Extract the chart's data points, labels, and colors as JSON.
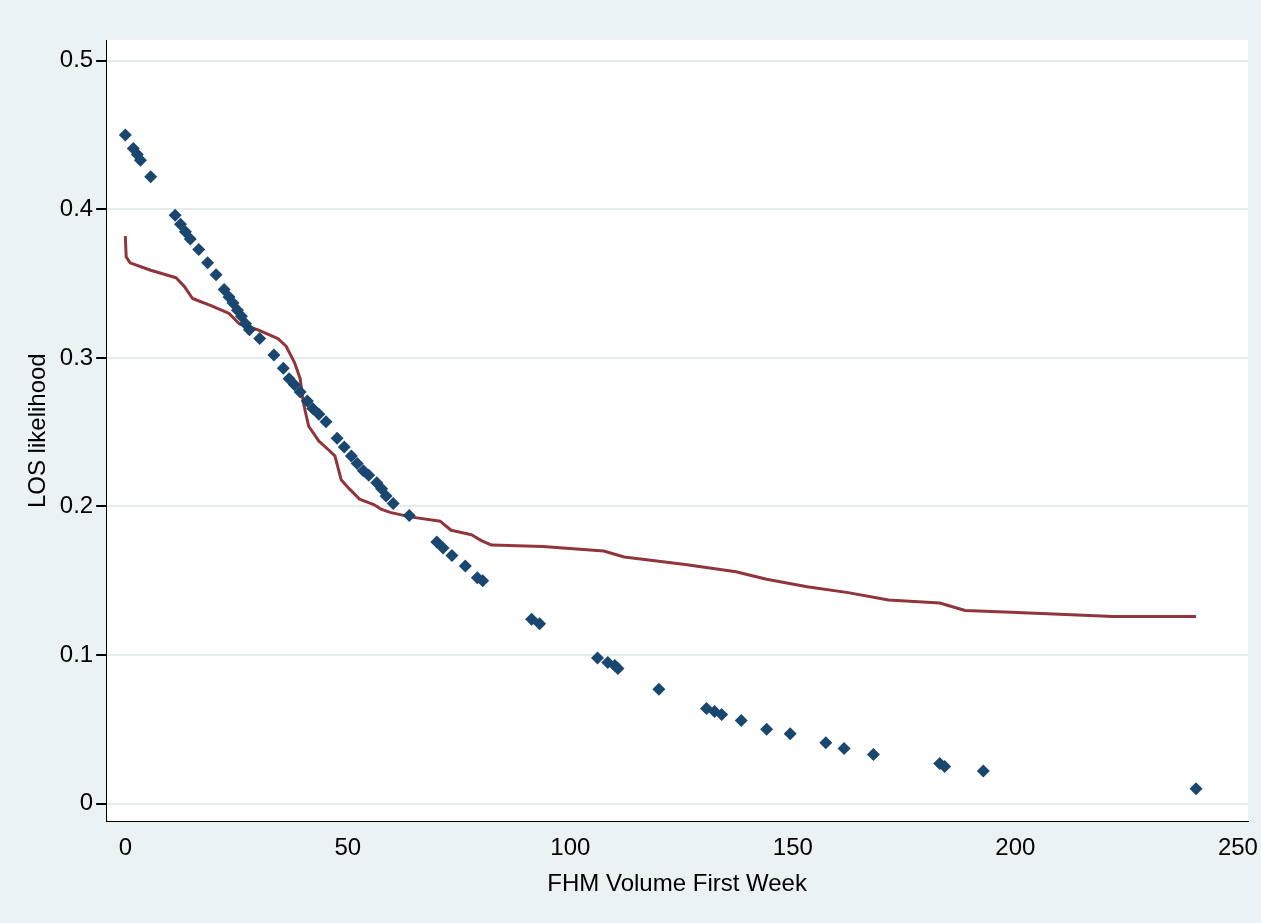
{
  "chart_data": {
    "type": "scatter",
    "xlabel": "FHM Volume First Week",
    "ylabel": "LOS likelihood",
    "xlim": [
      -4.3,
      252.3
    ],
    "ylim": [
      -0.012,
      0.514
    ],
    "xticks": [
      0,
      50,
      100,
      150,
      200,
      250
    ],
    "yticks": [
      0,
      0.1,
      0.2,
      0.3,
      0.4,
      0.5
    ],
    "grid": "y",
    "legend": false,
    "marker": "diamond",
    "series": [
      {
        "color": "#1a476f",
        "x": [
          0,
          1.8,
          2.7,
          3.4,
          5.7,
          11.2,
          12.4,
          13.5,
          14.6,
          16.5,
          18.5,
          20.4,
          22.2,
          23.3,
          24.2,
          25.2,
          26.1,
          27,
          27.9,
          30.2,
          33.4,
          35.5,
          36.8,
          38,
          39.3,
          40.9,
          42.1,
          43.5,
          45.1,
          47.6,
          49.2,
          50.8,
          52.1,
          53.5,
          54.7,
          56.5,
          57.6,
          58.6,
          60.2,
          63.8,
          70,
          71.4,
          73.4,
          76.4,
          79.1,
          80.3,
          91.3,
          93.1,
          106.1,
          108.4,
          110,
          110.7,
          119.9,
          130.6,
          132.4,
          134,
          138.4,
          144.1,
          149.4,
          157.4,
          161.5,
          168.1,
          183,
          184.1,
          192.8,
          240.6
        ],
        "values": [
          0.45,
          0.441,
          0.437,
          0.433,
          0.422,
          0.396,
          0.39,
          0.385,
          0.38,
          0.373,
          0.364,
          0.356,
          0.346,
          0.341,
          0.337,
          0.332,
          0.328,
          0.323,
          0.319,
          0.313,
          0.302,
          0.293,
          0.286,
          0.282,
          0.277,
          0.271,
          0.266,
          0.262,
          0.257,
          0.246,
          0.24,
          0.234,
          0.229,
          0.224,
          0.221,
          0.216,
          0.212,
          0.207,
          0.202,
          0.194,
          0.176,
          0.172,
          0.167,
          0.16,
          0.152,
          0.15,
          0.124,
          0.121,
          0.098,
          0.095,
          0.093,
          0.091,
          0.077,
          0.064,
          0.062,
          0.06,
          0.056,
          0.05,
          0.047,
          0.041,
          0.037,
          0.033,
          0.027,
          0.025,
          0.022,
          0.01
        ]
      },
      {
        "type": "line",
        "color": "#90353b",
        "marker": "none",
        "line_style": "solid",
        "x": [
          0,
          0.2,
          1.1,
          5.7,
          11.4,
          13.3,
          15.1,
          19.4,
          23.3,
          25.6,
          29.7,
          34.3,
          36.1,
          38,
          39.3,
          40,
          41.2,
          43.5,
          45.7,
          47.1,
          48.5,
          50.3,
          52.6,
          56,
          57.6,
          59.5,
          64,
          70.8,
          73.2,
          77.8,
          80,
          82.3,
          93.8,
          107.5,
          112.1,
          125.8,
          137.2,
          144.1,
          153.2,
          162.4,
          171.5,
          183,
          188.7,
          205.9,
          221.9,
          240.6
        ],
        "values": [
          0.382,
          0.368,
          0.364,
          0.359,
          0.354,
          0.348,
          0.34,
          0.335,
          0.33,
          0.323,
          0.319,
          0.313,
          0.308,
          0.297,
          0.286,
          0.27,
          0.254,
          0.244,
          0.238,
          0.234,
          0.218,
          0.212,
          0.205,
          0.201,
          0.198,
          0.196,
          0.193,
          0.19,
          0.184,
          0.181,
          0.177,
          0.174,
          0.173,
          0.17,
          0.166,
          0.161,
          0.156,
          0.151,
          0.146,
          0.142,
          0.137,
          0.135,
          0.13,
          0.128,
          0.126,
          0.126
        ]
      }
    ]
  }
}
